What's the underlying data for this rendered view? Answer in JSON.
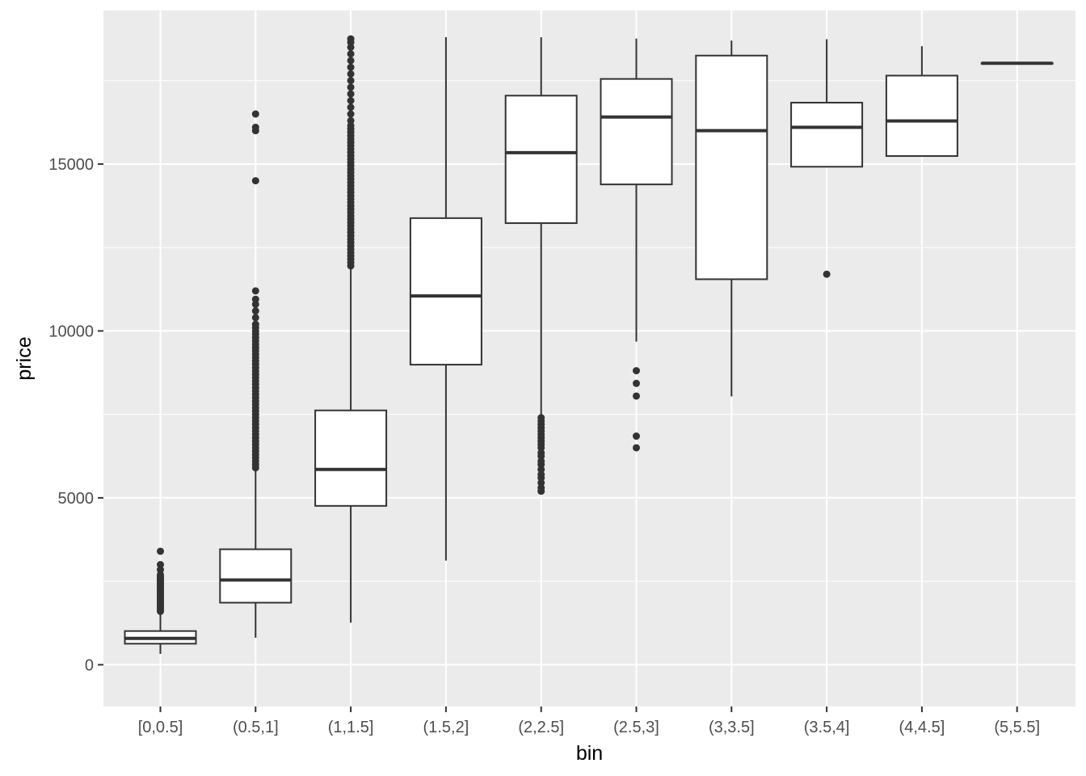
{
  "chart_data": {
    "type": "boxplot",
    "xlabel": "bin",
    "ylabel": "price",
    "ylim": [
      -1250,
      19600
    ],
    "yticks": [
      0,
      5000,
      10000,
      15000
    ],
    "grid": true,
    "legend": "none",
    "colors": {
      "panel_bg": "#ebebeb",
      "grid": "#ffffff",
      "box_fill": "#ffffff",
      "box_stroke": "#333333",
      "outlier": "#333333",
      "tick_text": "#4d4d4d",
      "axis_title": "#000000"
    },
    "categories": [
      "[0,0.5]",
      "(0.5,1]",
      "(1,1.5]",
      "(1.5,2]",
      "(2,2.5]",
      "(2.5,3]",
      "(3,3.5]",
      "(3.5,4]",
      "(4,4.5]",
      "(5,5.5]"
    ],
    "boxes": [
      {
        "category": "[0,0.5]",
        "whisker_low": 326,
        "q1": 631,
        "median": 790,
        "q3": 1010,
        "whisker_high": 1580,
        "outliers": [
          1600,
          1650,
          1700,
          1750,
          1800,
          1850,
          1900,
          1950,
          2000,
          2050,
          2100,
          2150,
          2200,
          2250,
          2300,
          2350,
          2400,
          2450,
          2500,
          2550,
          2600,
          2650,
          2700,
          2850,
          3000,
          3400
        ]
      },
      {
        "category": "(0.5,1]",
        "whisker_low": 810,
        "q1": 1860,
        "median": 2540,
        "q3": 3460,
        "whisker_high": 5860,
        "outliers": [
          5900,
          6000,
          6100,
          6200,
          6300,
          6400,
          6500,
          6600,
          6700,
          6800,
          6900,
          7000,
          7100,
          7200,
          7300,
          7400,
          7500,
          7600,
          7700,
          7800,
          7900,
          8000,
          8100,
          8200,
          8300,
          8400,
          8500,
          8600,
          8700,
          8800,
          8900,
          9000,
          9100,
          9200,
          9300,
          9400,
          9500,
          9600,
          9700,
          9800,
          9900,
          10000,
          10100,
          10200,
          10400,
          10600,
          10800,
          10950,
          11200,
          14500,
          16000,
          16100,
          16500
        ]
      },
      {
        "category": "(1,1.5]",
        "whisker_low": 1260,
        "q1": 4760,
        "median": 5850,
        "q3": 7620,
        "whisker_high": 11880,
        "outliers": [
          11950,
          12050,
          12150,
          12250,
          12350,
          12450,
          12550,
          12650,
          12750,
          12850,
          12950,
          13050,
          13150,
          13250,
          13350,
          13450,
          13550,
          13650,
          13750,
          13850,
          13950,
          14050,
          14150,
          14250,
          14350,
          14450,
          14550,
          14650,
          14750,
          14850,
          14950,
          15050,
          15150,
          15250,
          15350,
          15450,
          15550,
          15650,
          15750,
          15850,
          15950,
          16050,
          16150,
          16300,
          16500,
          16700,
          16900,
          17100,
          17300,
          17500,
          17700,
          17900,
          18100,
          18300,
          18500,
          18650,
          18750
        ]
      },
      {
        "category": "(1.5,2]",
        "whisker_low": 3120,
        "q1": 8990,
        "median": 11050,
        "q3": 13380,
        "whisker_high": 18800,
        "outliers": []
      },
      {
        "category": "(2,2.5]",
        "whisker_low": 5290,
        "q1": 13230,
        "median": 15340,
        "q3": 17050,
        "whisker_high": 18800,
        "outliers": [
          5200,
          5300,
          5450,
          5600,
          5700,
          5850,
          6000,
          6100,
          6250,
          6350,
          6500,
          6600,
          6700,
          6800,
          6900,
          7000,
          7100,
          7200,
          7300,
          7400
        ]
      },
      {
        "category": "(2.5,3]",
        "whisker_low": 9680,
        "q1": 14390,
        "median": 16410,
        "q3": 17550,
        "whisker_high": 18760,
        "outliers": [
          6500,
          6850,
          8050,
          8430,
          8810
        ]
      },
      {
        "category": "(3,3.5]",
        "whisker_low": 8040,
        "q1": 11550,
        "median": 16000,
        "q3": 18250,
        "whisker_high": 18700,
        "outliers": []
      },
      {
        "category": "(3.5,4]",
        "whisker_low": 14900,
        "q1": 14920,
        "median": 16100,
        "q3": 16840,
        "whisker_high": 18740,
        "outliers": [
          11700
        ]
      },
      {
        "category": "(4,4.5]",
        "whisker_low": 15220,
        "q1": 15240,
        "median": 16290,
        "q3": 17650,
        "whisker_high": 18530,
        "outliers": []
      },
      {
        "category": "(5,5.5]",
        "whisker_low": 18020,
        "q1": 18020,
        "median": 18020,
        "q3": 18020,
        "whisker_high": 18020,
        "outliers": []
      }
    ]
  }
}
